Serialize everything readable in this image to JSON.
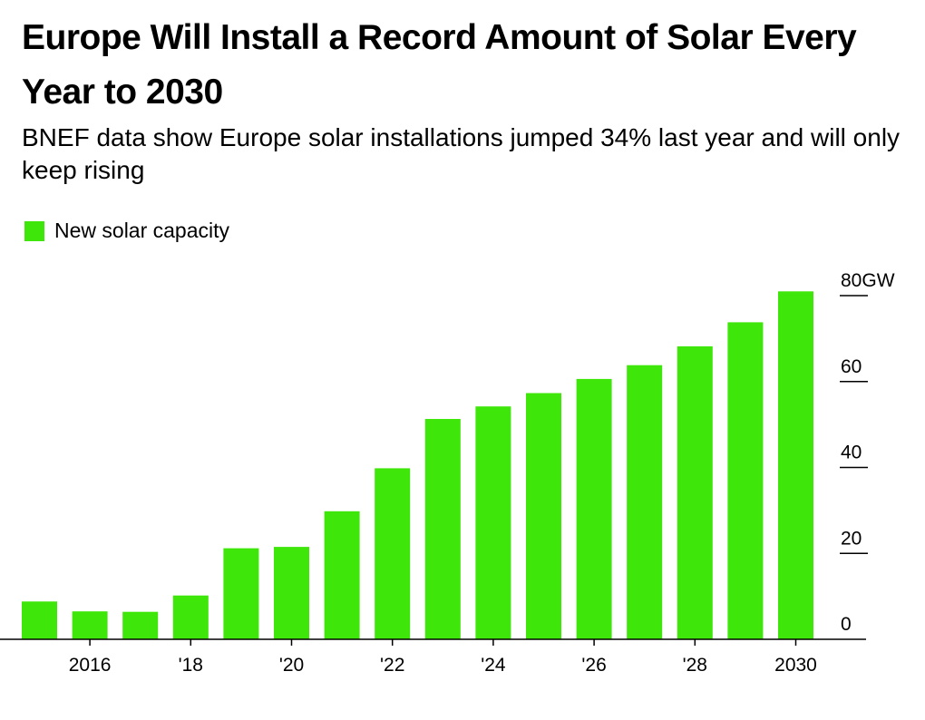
{
  "title": "Europe Will Install a Record Amount of Solar Every Year to 2030",
  "subtitle": "BNEF data show Europe solar installations jumped 34% last year and will only keep rising",
  "legend": {
    "label": "New solar capacity",
    "color": "#3ee60a"
  },
  "chart_data": {
    "type": "bar",
    "title": "Europe Will Install a Record Amount of Solar Every Year to 2030",
    "subtitle": "BNEF data show Europe solar installations jumped 34% last year and will only keep rising",
    "xlabel": "",
    "ylabel": "",
    "unit": "GW",
    "categories": [
      "2015",
      "2016",
      "2017",
      "2018",
      "2019",
      "2020",
      "2021",
      "2022",
      "2023",
      "2024",
      "2025",
      "2026",
      "2027",
      "2028",
      "2029",
      "2030"
    ],
    "series": [
      {
        "name": "New solar capacity",
        "values": [
          8.8,
          6.5,
          6.4,
          10.2,
          21.2,
          21.5,
          29.8,
          39.8,
          51.3,
          54.2,
          57.3,
          60.6,
          63.8,
          68.2,
          73.8,
          81.0
        ]
      }
    ],
    "x_tick_labels": [
      {
        "category": "2016",
        "label": "2016"
      },
      {
        "category": "2018",
        "label": "'18"
      },
      {
        "category": "2020",
        "label": "'20"
      },
      {
        "category": "2022",
        "label": "'22"
      },
      {
        "category": "2024",
        "label": "'24"
      },
      {
        "category": "2026",
        "label": "'26"
      },
      {
        "category": "2028",
        "label": "'28"
      },
      {
        "category": "2030",
        "label": "2030"
      }
    ],
    "y_ticks": [
      {
        "value": 0,
        "label": "0"
      },
      {
        "value": 20,
        "label": "20"
      },
      {
        "value": 40,
        "label": "40"
      },
      {
        "value": 60,
        "label": "60"
      },
      {
        "value": 80,
        "label": "80GW"
      }
    ],
    "ylim": [
      0,
      80
    ],
    "y_axis_side": "right",
    "legend_position": "top-left",
    "grid": false,
    "bar_color": "#3ee60a"
  }
}
